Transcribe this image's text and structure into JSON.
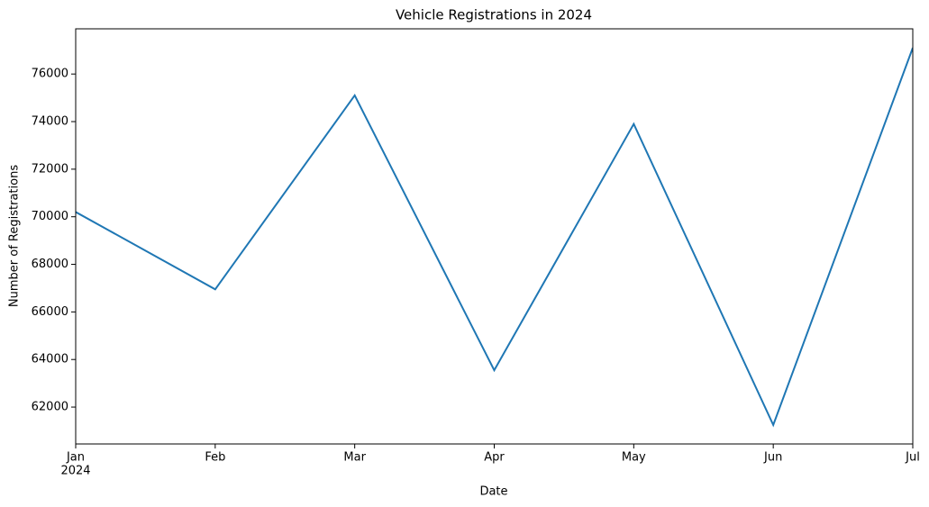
{
  "chart_data": {
    "type": "line",
    "title": "Vehicle Registrations in 2024",
    "x_label": "Date",
    "y_label": "Number of Registrations",
    "categories": [
      "Jan",
      "Feb",
      "Mar",
      "Apr",
      "May",
      "Jun",
      "Jul"
    ],
    "x_year_label": "2024",
    "series": [
      {
        "name": "Registrations",
        "color": "#1f77b4",
        "values": [
          70200,
          66950,
          75100,
          63550,
          73900,
          61250,
          77100
        ]
      }
    ],
    "ylim": [
      60450,
      77900
    ],
    "yticks": [
      62000,
      64000,
      66000,
      68000,
      70000,
      72000,
      74000,
      76000
    ],
    "grid": false
  }
}
